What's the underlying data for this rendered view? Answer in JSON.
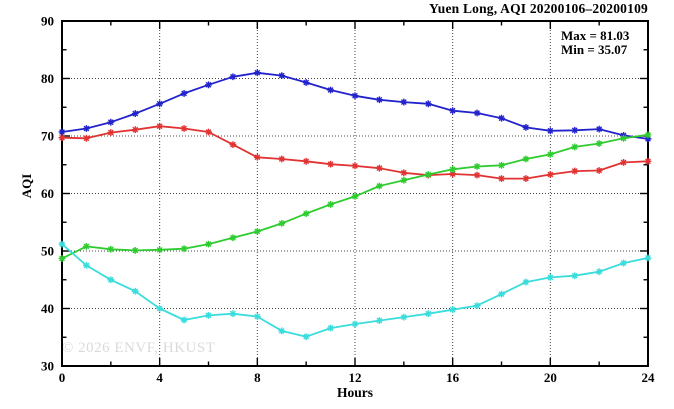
{
  "title": "Yuen Long, AQI 20200106–20200109",
  "watermark": "© 2026 ENVF, HKUST",
  "chart_data": {
    "type": "line",
    "title": "Yuen Long, AQI 20200106–20200109",
    "xlabel": "Hours",
    "ylabel": "AQI",
    "xlim": [
      0,
      24
    ],
    "ylim": [
      30,
      90
    ],
    "x_ticks": [
      0,
      4,
      8,
      12,
      16,
      20,
      24
    ],
    "x_minor_ticks": [
      2,
      6,
      10,
      14,
      18,
      22
    ],
    "y_ticks": [
      30,
      40,
      50,
      60,
      70,
      80,
      90
    ],
    "y_minor_ticks": [
      35,
      45,
      55,
      65,
      75,
      85
    ],
    "grid": "dotted",
    "legend_position": "top-right-inside",
    "annotations": {
      "max_label": "Max = 81.03",
      "min_label": "Min = 35.07"
    },
    "max_value": 81.03,
    "min_value": 35.07,
    "x": [
      0,
      1,
      2,
      3,
      4,
      5,
      6,
      7,
      8,
      9,
      10,
      11,
      12,
      13,
      14,
      15,
      16,
      17,
      18,
      19,
      20,
      21,
      22,
      23,
      24
    ],
    "series": [
      {
        "name": "blue",
        "color": "#2323cd",
        "values": [
          70.7,
          71.3,
          72.4,
          73.9,
          75.6,
          77.4,
          78.9,
          80.3,
          81.0,
          80.5,
          79.3,
          78.0,
          77.0,
          76.3,
          75.9,
          75.6,
          74.4,
          74.0,
          73.1,
          71.5,
          70.9,
          71.0,
          71.2,
          70.1,
          69.5
        ]
      },
      {
        "name": "red",
        "color": "#e23333",
        "values": [
          69.7,
          69.6,
          70.6,
          71.1,
          71.7,
          71.3,
          70.7,
          68.5,
          66.3,
          66.0,
          65.6,
          65.1,
          64.8,
          64.4,
          63.6,
          63.2,
          63.4,
          63.2,
          62.6,
          62.6,
          63.3,
          63.9,
          64.0,
          65.4,
          65.6
        ]
      },
      {
        "name": "green",
        "color": "#2fcc2f",
        "values": [
          48.7,
          50.8,
          50.3,
          50.1,
          50.2,
          50.4,
          51.2,
          52.3,
          53.4,
          54.8,
          56.5,
          58.1,
          59.5,
          61.3,
          62.3,
          63.3,
          64.2,
          64.7,
          64.9,
          66.0,
          66.8,
          68.1,
          68.7,
          69.6,
          70.2
        ]
      },
      {
        "name": "cyan",
        "color": "#3adcdc",
        "values": [
          51.2,
          47.5,
          45.0,
          43.0,
          40.0,
          38.0,
          38.8,
          39.1,
          38.6,
          36.1,
          35.1,
          36.6,
          37.3,
          37.9,
          38.5,
          39.1,
          39.8,
          40.5,
          42.5,
          44.6,
          45.4,
          45.7,
          46.4,
          47.9,
          48.8
        ]
      }
    ]
  }
}
